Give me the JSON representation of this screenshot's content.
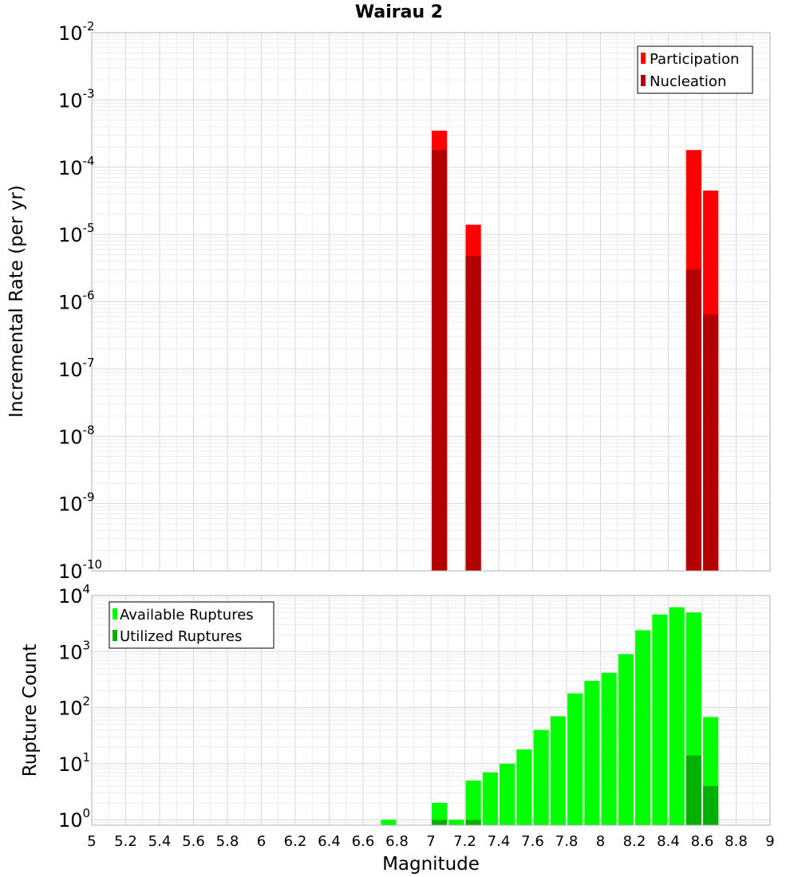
{
  "chart_data": [
    {
      "type": "bar",
      "title": "Wairau 2",
      "xlabel": "",
      "ylabel": "Incremental Rate (per yr)",
      "yscale": "log",
      "ylim": [
        1e-10,
        0.01
      ],
      "xlim": [
        5,
        9
      ],
      "grid": true,
      "legend_position": "top-right",
      "y_ticks": [
        {
          "base": "10",
          "exp": "-10"
        },
        {
          "base": "10",
          "exp": "-9"
        },
        {
          "base": "10",
          "exp": "-8"
        },
        {
          "base": "10",
          "exp": "-7"
        },
        {
          "base": "10",
          "exp": "-6"
        },
        {
          "base": "10",
          "exp": "-5"
        },
        {
          "base": "10",
          "exp": "-4"
        },
        {
          "base": "10",
          "exp": "-3"
        },
        {
          "base": "10",
          "exp": "-2"
        }
      ],
      "series": [
        {
          "name": "Participation",
          "color": "#ff0000",
          "x": [
            7.05,
            7.25,
            8.55,
            8.65
          ],
          "values": [
            0.00035,
            1.4e-05,
            0.00018,
            4.5e-05
          ]
        },
        {
          "name": "Nucleation",
          "color": "#b30000",
          "x": [
            7.05,
            7.25,
            8.55,
            8.65
          ],
          "values": [
            0.00018,
            4.8e-06,
            3e-06,
            6.5e-07
          ]
        }
      ]
    },
    {
      "type": "bar",
      "xlabel": "Magnitude",
      "ylabel": "Rupture Count",
      "yscale": "log",
      "ylim": [
        0.8,
        10000
      ],
      "xlim": [
        5,
        9
      ],
      "grid": true,
      "legend_position": "top-left",
      "x_ticks": [
        "5",
        "5.2",
        "5.4",
        "5.6",
        "5.8",
        "6",
        "6.2",
        "6.4",
        "6.6",
        "6.8",
        "7",
        "7.2",
        "7.4",
        "7.6",
        "7.8",
        "8",
        "8.2",
        "8.4",
        "8.6",
        "8.8",
        "9"
      ],
      "y_ticks": [
        {
          "base": "10",
          "exp": "0"
        },
        {
          "base": "10",
          "exp": "1"
        },
        {
          "base": "10",
          "exp": "2"
        },
        {
          "base": "10",
          "exp": "3"
        },
        {
          "base": "10",
          "exp": "4"
        }
      ],
      "series": [
        {
          "name": "Available Ruptures",
          "color": "#00ff00",
          "x": [
            6.75,
            7.05,
            7.15,
            7.25,
            7.35,
            7.45,
            7.55,
            7.65,
            7.75,
            7.85,
            7.95,
            8.05,
            8.15,
            8.25,
            8.35,
            8.45,
            8.55,
            8.65
          ],
          "values": [
            1,
            2,
            1,
            5,
            7,
            10,
            18,
            40,
            70,
            180,
            300,
            420,
            900,
            2400,
            4600,
            6200,
            5000,
            68
          ]
        },
        {
          "name": "Utilized Ruptures",
          "color": "#00b000",
          "x": [
            7.05,
            7.25,
            8.55,
            8.65
          ],
          "values": [
            1,
            1,
            14,
            4
          ]
        }
      ]
    }
  ]
}
